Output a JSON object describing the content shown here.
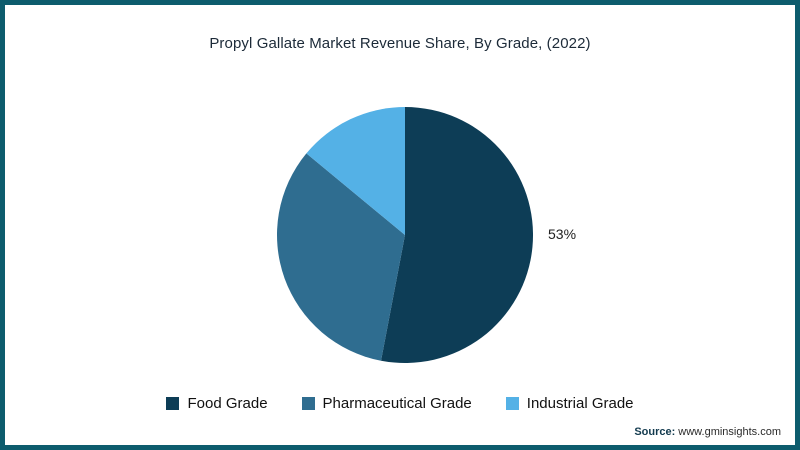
{
  "title": "Propyl Gallate Market Revenue Share, By Grade, (2022)",
  "source": {
    "label": "Source:",
    "url": "www.gminsights.com"
  },
  "colors": {
    "frame_border": "#0d5c6d",
    "title_text": "#1c2a38",
    "food_grade": "#0d3d56",
    "pharmaceutical_grade": "#2f6d90",
    "industrial_grade": "#54b1e6"
  },
  "chart_data": {
    "type": "pie",
    "title": "Propyl Gallate Market Revenue Share, By Grade, (2022)",
    "categories": [
      "Food Grade",
      "Pharmaceutical Grade",
      "Industrial Grade"
    ],
    "values": [
      53,
      33,
      14
    ],
    "slice_colors": [
      "#0d3d56",
      "#2f6d90",
      "#54b1e6"
    ],
    "data_labels": [
      "53%"
    ],
    "labeled_slice": "Food Grade",
    "start_angle_deg": 0,
    "direction": "clockwise",
    "legend_position": "bottom"
  }
}
